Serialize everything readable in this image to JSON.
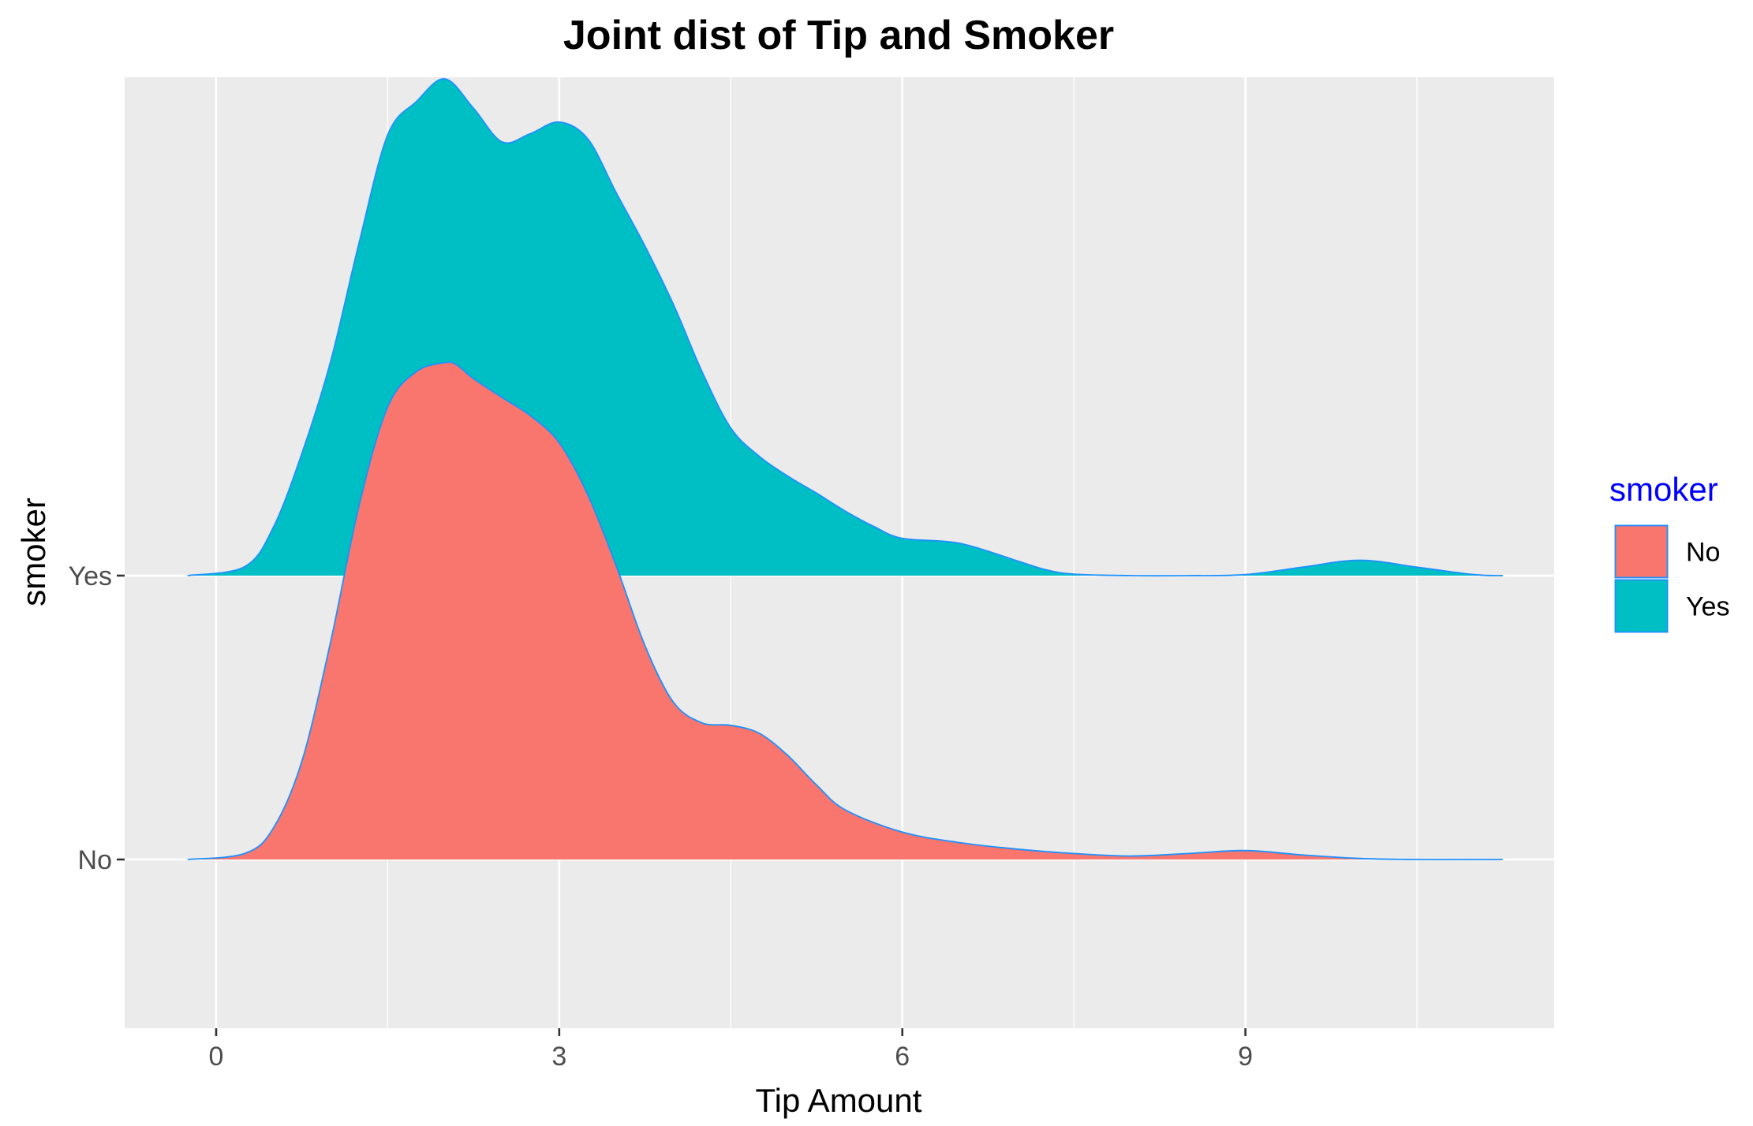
{
  "chart_data": {
    "type": "ridgeline-density",
    "title": "Joint dist of Tip and Smoker",
    "xlabel": "Tip Amount",
    "ylabel": "smoker",
    "xlim": [
      -0.8,
      11.7
    ],
    "x_ticks": [
      0,
      3,
      6,
      9
    ],
    "x_tick_labels": [
      "0",
      "3",
      "6",
      "9"
    ],
    "categories": [
      "No",
      "Yes"
    ],
    "grid": true,
    "legend": {
      "title": "smoker",
      "title_color": "#0000FF",
      "position": "right",
      "entries": [
        "No",
        "Yes"
      ]
    },
    "outline_color": "#1E90FF",
    "series": [
      {
        "name": "No",
        "color": "#F8766D",
        "x": [
          -0.25,
          0.25,
          0.5,
          0.75,
          1.0,
          1.25,
          1.5,
          1.75,
          2.0,
          2.1,
          2.25,
          2.5,
          2.75,
          3.0,
          3.25,
          3.5,
          3.75,
          4.0,
          4.25,
          4.5,
          4.75,
          5.0,
          5.25,
          5.5,
          6.0,
          6.5,
          7.0,
          7.5,
          8.0,
          8.5,
          9.0,
          9.5,
          10.0,
          10.5,
          11.0,
          11.25
        ],
        "density": [
          0.0,
          0.012,
          0.063,
          0.198,
          0.437,
          0.713,
          0.911,
          0.982,
          1.0,
          0.996,
          0.968,
          0.93,
          0.893,
          0.839,
          0.734,
          0.59,
          0.43,
          0.316,
          0.275,
          0.27,
          0.254,
          0.209,
          0.15,
          0.1,
          0.055,
          0.034,
          0.021,
          0.012,
          0.007,
          0.012,
          0.018,
          0.009,
          0.002,
          0.0,
          0.0,
          0.0
        ]
      },
      {
        "name": "Yes",
        "color": "#00BFC4",
        "x": [
          -0.25,
          0.25,
          0.5,
          0.75,
          1.0,
          1.25,
          1.5,
          1.75,
          2.0,
          2.25,
          2.5,
          2.75,
          3.0,
          3.25,
          3.5,
          3.75,
          4.0,
          4.25,
          4.5,
          4.75,
          5.0,
          5.25,
          5.5,
          5.75,
          6.0,
          6.5,
          7.0,
          7.25,
          7.5,
          8.0,
          8.5,
          9.0,
          9.5,
          10.0,
          10.5,
          11.0,
          11.25
        ],
        "density": [
          0.0,
          0.018,
          0.097,
          0.246,
          0.43,
          0.67,
          0.887,
          0.954,
          1.0,
          0.941,
          0.873,
          0.89,
          0.913,
          0.879,
          0.77,
          0.663,
          0.545,
          0.41,
          0.297,
          0.24,
          0.2,
          0.166,
          0.13,
          0.099,
          0.075,
          0.065,
          0.03,
          0.012,
          0.003,
          0.0,
          0.0,
          0.002,
          0.017,
          0.031,
          0.017,
          0.002,
          0.0
        ]
      }
    ]
  }
}
